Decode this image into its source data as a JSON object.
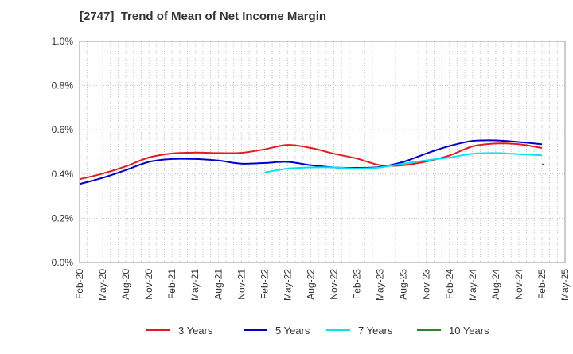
{
  "chart_data": {
    "type": "line",
    "title": "[2747]  Trend of Mean of Net Income Margin",
    "xlabel": "",
    "ylabel": "",
    "ylim": [
      0.0,
      1.0
    ],
    "yticks": [
      "0.0%",
      "0.2%",
      "0.4%",
      "0.6%",
      "0.8%",
      "1.0%"
    ],
    "xticks": [
      "Feb-20",
      "May-20",
      "Aug-20",
      "Nov-20",
      "Feb-21",
      "May-21",
      "Aug-21",
      "Nov-21",
      "Feb-22",
      "May-22",
      "Aug-22",
      "Nov-22",
      "Feb-23",
      "May-23",
      "Aug-23",
      "Nov-23",
      "Feb-24",
      "May-24",
      "Aug-24",
      "Nov-24",
      "Feb-25",
      "May-25"
    ],
    "grid": true,
    "legend_position": "bottom",
    "series": [
      {
        "name": "3 Years",
        "color": "#e41a1c",
        "points": [
          [
            "Feb-20",
            0.377
          ],
          [
            "May-20",
            0.402
          ],
          [
            "Aug-20",
            0.435
          ],
          [
            "Nov-20",
            0.475
          ],
          [
            "Feb-21",
            0.493
          ],
          [
            "May-21",
            0.497
          ],
          [
            "Aug-21",
            0.495
          ],
          [
            "Nov-21",
            0.496
          ],
          [
            "Feb-22",
            0.512
          ],
          [
            "May-22",
            0.532
          ],
          [
            "Aug-22",
            0.518
          ],
          [
            "Nov-22",
            0.492
          ],
          [
            "Feb-23",
            0.47
          ],
          [
            "May-23",
            0.44
          ],
          [
            "Aug-23",
            0.44
          ],
          [
            "Nov-23",
            0.457
          ],
          [
            "Feb-24",
            0.484
          ],
          [
            "May-24",
            0.525
          ],
          [
            "Aug-24",
            0.538
          ],
          [
            "Nov-24",
            0.535
          ],
          [
            "Feb-25",
            0.518
          ]
        ]
      },
      {
        "name": "5 Years",
        "color": "#0000cc",
        "points": [
          [
            "Feb-20",
            0.355
          ],
          [
            "May-20",
            0.383
          ],
          [
            "Aug-20",
            0.418
          ],
          [
            "Nov-20",
            0.455
          ],
          [
            "Feb-21",
            0.468
          ],
          [
            "May-21",
            0.468
          ],
          [
            "Aug-21",
            0.461
          ],
          [
            "Nov-21",
            0.447
          ],
          [
            "Feb-22",
            0.45
          ],
          [
            "May-22",
            0.455
          ],
          [
            "Aug-22",
            0.44
          ],
          [
            "Nov-22",
            0.43
          ],
          [
            "Feb-23",
            0.428
          ],
          [
            "May-23",
            0.432
          ],
          [
            "Aug-23",
            0.455
          ],
          [
            "Nov-23",
            0.493
          ],
          [
            "Feb-24",
            0.527
          ],
          [
            "May-24",
            0.55
          ],
          [
            "Aug-24",
            0.552
          ],
          [
            "Nov-24",
            0.545
          ],
          [
            "Feb-25",
            0.535
          ]
        ]
      },
      {
        "name": "7 Years",
        "color": "#00e5ee",
        "points": [
          [
            "Feb-22",
            0.407
          ],
          [
            "May-22",
            0.425
          ],
          [
            "Aug-22",
            0.43
          ],
          [
            "Nov-22",
            0.43
          ],
          [
            "Feb-23",
            0.425
          ],
          [
            "May-23",
            0.43
          ],
          [
            "Aug-23",
            0.447
          ],
          [
            "Nov-23",
            0.462
          ],
          [
            "Feb-24",
            0.475
          ],
          [
            "May-24",
            0.492
          ],
          [
            "Aug-24",
            0.495
          ],
          [
            "Nov-24",
            0.49
          ],
          [
            "Feb-25",
            0.485
          ]
        ]
      },
      {
        "name": "10 Years",
        "color": "#228b22",
        "points": [
          [
            "Feb-25",
            0.443
          ],
          [
            "Feb-25+",
            0.443
          ]
        ]
      }
    ]
  }
}
